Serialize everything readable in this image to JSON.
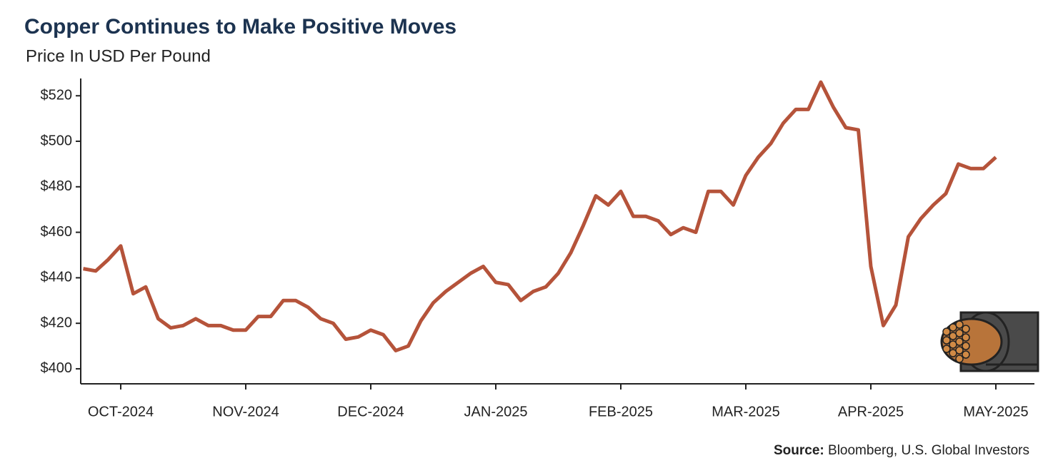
{
  "chart_data": {
    "type": "line",
    "title": "Copper Continues to Make Positive Moves",
    "subtitle": "Price In USD Per Pound",
    "source_label": "Source:",
    "source": "Bloomberg, U.S. Global Investors",
    "categories": [
      null,
      null,
      null,
      "OCT-2024",
      null,
      null,
      null,
      null,
      null,
      null,
      null,
      null,
      null,
      "NOV-2024",
      null,
      null,
      null,
      null,
      null,
      null,
      null,
      null,
      null,
      "DEC-2024",
      null,
      null,
      null,
      null,
      null,
      null,
      null,
      null,
      null,
      "JAN-2025",
      null,
      null,
      null,
      null,
      null,
      null,
      null,
      null,
      null,
      "FEB-2025",
      null,
      null,
      null,
      null,
      null,
      null,
      null,
      null,
      null,
      "MAR-2025",
      null,
      null,
      null,
      null,
      null,
      null,
      null,
      null,
      null,
      "APR-2025",
      null,
      null,
      null,
      null,
      null,
      null,
      null,
      null,
      null,
      "MAY-2025"
    ],
    "series": [
      {
        "name": "Copper",
        "color": "#b5533a",
        "values": [
          444,
          443,
          448,
          454,
          433,
          436,
          422,
          418,
          419,
          422,
          419,
          419,
          417,
          417,
          423,
          423,
          430,
          430,
          427,
          422,
          420,
          413,
          414,
          417,
          415,
          408,
          410,
          421,
          429,
          434,
          438,
          442,
          445,
          438,
          437,
          430,
          434,
          436,
          442,
          451,
          463,
          476,
          472,
          478,
          467,
          467,
          465,
          459,
          462,
          460,
          478,
          478,
          472,
          485,
          493,
          499,
          508,
          514,
          514,
          526,
          515,
          506,
          505,
          445,
          419,
          428,
          458,
          466,
          472,
          477,
          490,
          488,
          488,
          493
        ]
      }
    ],
    "ylim": [
      393.4,
      527.6
    ],
    "yticks": [
      {
        "value": 400,
        "label": "$400"
      },
      {
        "value": 420,
        "label": "$420"
      },
      {
        "value": 440,
        "label": "$440"
      },
      {
        "value": 460,
        "label": "$460"
      },
      {
        "value": 480,
        "label": "$480"
      },
      {
        "value": 500,
        "label": "$500"
      },
      {
        "value": 520,
        "label": "$520"
      }
    ],
    "grid": false
  }
}
